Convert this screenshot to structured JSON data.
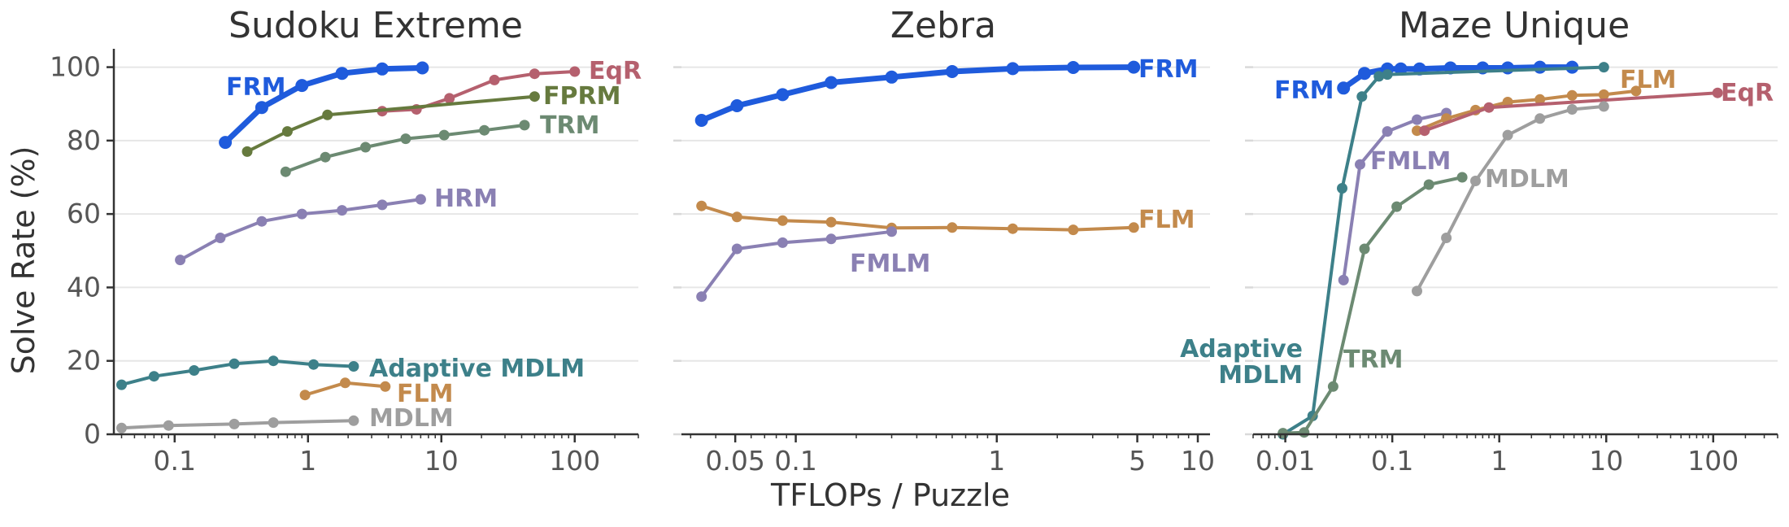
{
  "figure": {
    "ylabel": "Solve Rate (%)",
    "xlabel": "TFLOPs / Puzzle"
  },
  "colors": {
    "FRM": "#1f5bdc",
    "EqR": "#b5606e",
    "FPRM": "#667a3e",
    "TRM": "#6c8a72",
    "HRM": "#8a80b3",
    "Adaptive MDLM": "#3d8089",
    "FLM": "#c38a4c",
    "MDLM": "#9e9e9e",
    "FMLM": "#8a80b3"
  },
  "chart_data": [
    {
      "type": "line",
      "title": "Sudoku Extreme",
      "xscale": "log",
      "xlim": [
        0.035,
        300
      ],
      "ylim": [
        0,
        105
      ],
      "xticks": [
        "0.1",
        "1",
        "10",
        "100"
      ],
      "yticks": [
        "0",
        "20",
        "40",
        "60",
        "80",
        "100"
      ],
      "grid": "horizontal",
      "series": [
        {
          "name": "FRM",
          "x": [
            0.24,
            0.45,
            0.9,
            1.8,
            3.6,
            7.2
          ],
          "y": [
            79.5,
            89,
            95,
            98.3,
            99.5,
            99.8
          ]
        },
        {
          "name": "EqR",
          "x": [
            3.6,
            6.5,
            11.5,
            25,
            50,
            100
          ],
          "y": [
            88,
            88.5,
            91.5,
            96.5,
            98.2,
            98.8
          ]
        },
        {
          "name": "FPRM",
          "x": [
            0.35,
            0.7,
            1.4,
            50
          ],
          "y": [
            77,
            82.5,
            87,
            92
          ]
        },
        {
          "name": "TRM",
          "x": [
            0.68,
            1.35,
            2.7,
            5.4,
            10.5,
            21,
            42
          ],
          "y": [
            71.5,
            75.5,
            78.2,
            80.5,
            81.5,
            82.8,
            84.2
          ]
        },
        {
          "name": "HRM",
          "x": [
            0.11,
            0.22,
            0.45,
            0.9,
            1.8,
            3.6,
            7.0
          ],
          "y": [
            47.5,
            53.5,
            58,
            60,
            61,
            62.5,
            64
          ]
        },
        {
          "name": "Adaptive MDLM",
          "x": [
            0.04,
            0.07,
            0.14,
            0.28,
            0.55,
            1.1,
            2.2
          ],
          "y": [
            13.5,
            15.8,
            17.4,
            19.2,
            20,
            19,
            18.5
          ]
        },
        {
          "name": "FLM",
          "x": [
            0.95,
            1.9,
            3.8
          ],
          "y": [
            10.7,
            14,
            13
          ]
        },
        {
          "name": "MDLM",
          "x": [
            0.04,
            0.09,
            0.28,
            0.55,
            2.2
          ],
          "y": [
            1.7,
            2.4,
            2.8,
            3.2,
            3.7
          ]
        }
      ],
      "annotations": [
        "FRM",
        "EqR",
        "FPRM",
        "TRM",
        "HRM",
        "Adaptive MDLM",
        "FLM",
        "MDLM"
      ]
    },
    {
      "type": "line",
      "title": "Zebra",
      "xscale": "log",
      "xlim": [
        0.027,
        11.5
      ],
      "ylim": [
        0,
        105
      ],
      "xticks": [
        "0.05",
        "0.1",
        "1",
        "5",
        "10"
      ],
      "yticks": [
        "0",
        "20",
        "40",
        "60",
        "80",
        "100"
      ],
      "grid": "horizontal",
      "series": [
        {
          "name": "FRM",
          "x": [
            0.034,
            0.051,
            0.086,
            0.15,
            0.3,
            0.6,
            1.2,
            2.4,
            4.8
          ],
          "y": [
            85.5,
            89.5,
            92.5,
            95.8,
            97.3,
            98.8,
            99.6,
            99.9,
            100
          ]
        },
        {
          "name": "FLM",
          "x": [
            0.034,
            0.051,
            0.086,
            0.15,
            0.3,
            0.6,
            1.2,
            2.4,
            4.8
          ],
          "y": [
            62.2,
            59.2,
            58.2,
            57.8,
            56.2,
            56.3,
            56,
            55.7,
            56.3
          ]
        },
        {
          "name": "FMLM",
          "x": [
            0.034,
            0.051,
            0.086,
            0.15,
            0.3
          ],
          "y": [
            37.5,
            50.5,
            52.2,
            53.2,
            55.2
          ]
        }
      ],
      "annotations": [
        "FRM",
        "FLM",
        "FMLM"
      ]
    },
    {
      "type": "line",
      "title": "Maze Unique",
      "xscale": "log",
      "xlim": [
        0.005,
        400
      ],
      "ylim": [
        0,
        105
      ],
      "xticks": [
        "0.01",
        "0.1",
        "1",
        "10",
        "100"
      ],
      "yticks": [
        "0",
        "20",
        "40",
        "60",
        "80",
        "100"
      ],
      "grid": "horizontal",
      "series": [
        {
          "name": "FRM",
          "x": [
            0.035,
            0.055,
            0.09,
            0.12,
            0.18,
            0.35,
            0.7,
            1.2,
            2.4,
            4.8
          ],
          "y": [
            94.3,
            98.3,
            99.5,
            99.5,
            99.5,
            99.8,
            99.8,
            99.8,
            100,
            100
          ]
        },
        {
          "name": "Adaptive MDLM",
          "x": [
            0.0095,
            0.018,
            0.034,
            0.052,
            0.075,
            0.09,
            9.5
          ],
          "y": [
            0,
            5,
            67,
            92,
            97.5,
            98,
            100
          ]
        },
        {
          "name": "TRM",
          "x": [
            0.0095,
            0.015,
            0.028,
            0.055,
            0.11,
            0.22,
            0.45
          ],
          "y": [
            0.3,
            0.5,
            13,
            50.5,
            62,
            68,
            70
          ]
        },
        {
          "name": "FMLM",
          "x": [
            0.035,
            0.05,
            0.09,
            0.17,
            0.32
          ],
          "y": [
            42,
            73.5,
            82.5,
            85.7,
            87.5
          ]
        },
        {
          "name": "FLM",
          "x": [
            0.17,
            0.32,
            0.6,
            1.2,
            2.4,
            4.8,
            9.5,
            19
          ],
          "y": [
            82.7,
            86,
            88.3,
            90.5,
            91.2,
            92.3,
            92.5,
            93.5
          ]
        },
        {
          "name": "EqR",
          "x": [
            0.2,
            0.8,
            110
          ],
          "y": [
            82.7,
            89,
            93
          ]
        },
        {
          "name": "MDLM",
          "x": [
            0.17,
            0.32,
            0.6,
            1.2,
            2.4,
            4.8,
            9.5
          ],
          "y": [
            39,
            53.5,
            69,
            81.5,
            86,
            88.5,
            89.3
          ]
        }
      ],
      "annotations": [
        "FRM",
        "FLM",
        "EqR",
        "FMLM",
        "MDLM",
        "Adaptive",
        "MDLM",
        "TRM"
      ]
    }
  ]
}
